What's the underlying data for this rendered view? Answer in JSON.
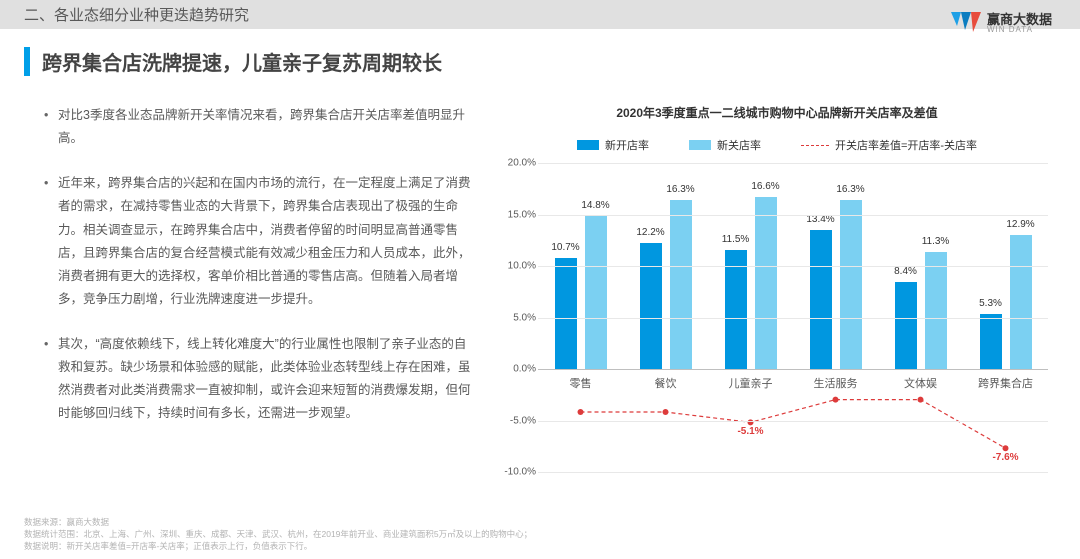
{
  "section_label": "二、各业态细分业种更迭趋势研究",
  "brand": {
    "cn": "赢商大数据",
    "en": "WIN DATA"
  },
  "title": "跨界集合店洗牌提速，儿童亲子复苏周期较长",
  "bullets": [
    "对比3季度各业态品牌新开关率情况来看，跨界集合店开关店率差值明显升高。",
    "近年来，跨界集合店的兴起和在国内市场的流行，在一定程度上满足了消费者的需求，在减持零售业态的大背景下，跨界集合店表现出了极强的生命力。相关调查显示，在跨界集合店中，消费者停留的时间明显高普通零售店，且跨界集合店的复合经营模式能有效减少租金压力和人员成本，此外，消费者拥有更大的选择权，客单价相比普通的零售店高。但随着入局者增多，竞争压力剧增，行业洗牌速度进一步提升。",
    "其次，“高度依赖线下，线上转化难度大”的行业属性也限制了亲子业态的自救和复苏。缺少场景和体验感的赋能，此类体验业态转型线上存在困难，虽然消费者对此类消费需求一直被抑制，或许会迎来短暂的消费爆发期，但何时能够回归线下，持续时间有多长，还需进一步观望。"
  ],
  "chart": {
    "title": "2020年3季度重点一二线城市购物中心品牌新开关店率及差值",
    "legend": {
      "open": "新开店率",
      "close": "新关店率",
      "diff": "开关店率差值=开店率-关店率"
    },
    "colors": {
      "open": "#0097e0",
      "close": "#7bd0f2",
      "diff": "#dd3b3b",
      "grid": "#e8e8e8",
      "axis": "#bfbfbf"
    },
    "y": {
      "min": -10,
      "max": 20,
      "step": 5
    },
    "categories": [
      "零售",
      "餐饮",
      "儿童亲子",
      "生活服务",
      "文体娱",
      "跨界集合店"
    ],
    "open": [
      10.7,
      12.2,
      11.5,
      13.4,
      8.4,
      5.3
    ],
    "close": [
      14.8,
      16.3,
      16.6,
      16.3,
      11.3,
      12.9
    ],
    "diff": [
      -4.1,
      -4.1,
      -5.1,
      -2.9,
      -2.9,
      -7.6
    ],
    "diff_labels_shown": {
      "2": "-5.1%",
      "5": "-7.6%"
    }
  },
  "footnotes": [
    "数据来源：赢商大数据",
    "数据统计范围：北京、上海、广州、深圳、重庆、成都、天津、武汉、杭州，在2019年前开业、商业建筑面积5万㎡及以上的购物中心；",
    "数据说明：新开关店率差值=开店率-关店率；正值表示上行，负值表示下行。"
  ]
}
